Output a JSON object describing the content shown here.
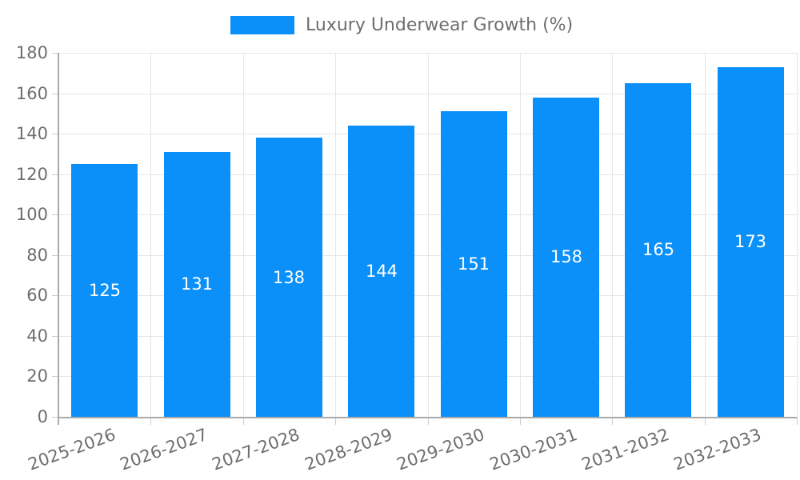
{
  "chart_data": {
    "type": "bar",
    "title": "",
    "legend_label": "Luxury Underwear Growth (%)",
    "legend_position": "top-center",
    "categories": [
      "2025-2026",
      "2026-2027",
      "2027-2028",
      "2028-2029",
      "2029-2030",
      "2030-2031",
      "2031-2032",
      "2032-2033"
    ],
    "series": [
      {
        "name": "Luxury Underwear Growth (%)",
        "values": [
          125,
          131,
          138,
          144,
          151,
          158,
          165,
          173
        ]
      }
    ],
    "value_labels_shown": true,
    "xlabel": "",
    "ylabel": "",
    "ylim": [
      0,
      180
    ],
    "ytick_step": 20,
    "ytick_labels": [
      "0",
      "20",
      "40",
      "60",
      "80",
      "100",
      "120",
      "140",
      "160",
      "180"
    ],
    "grid": true,
    "x_label_rotation_deg": -20,
    "colors": {
      "bar": "#0a90f8",
      "value_label": "#ffffff",
      "axis_text": "#6e6e6e",
      "axis_line": "#aaaaaa",
      "gridline": "#e6e6e6",
      "tick": "#cccccc",
      "background": "#ffffff"
    }
  }
}
